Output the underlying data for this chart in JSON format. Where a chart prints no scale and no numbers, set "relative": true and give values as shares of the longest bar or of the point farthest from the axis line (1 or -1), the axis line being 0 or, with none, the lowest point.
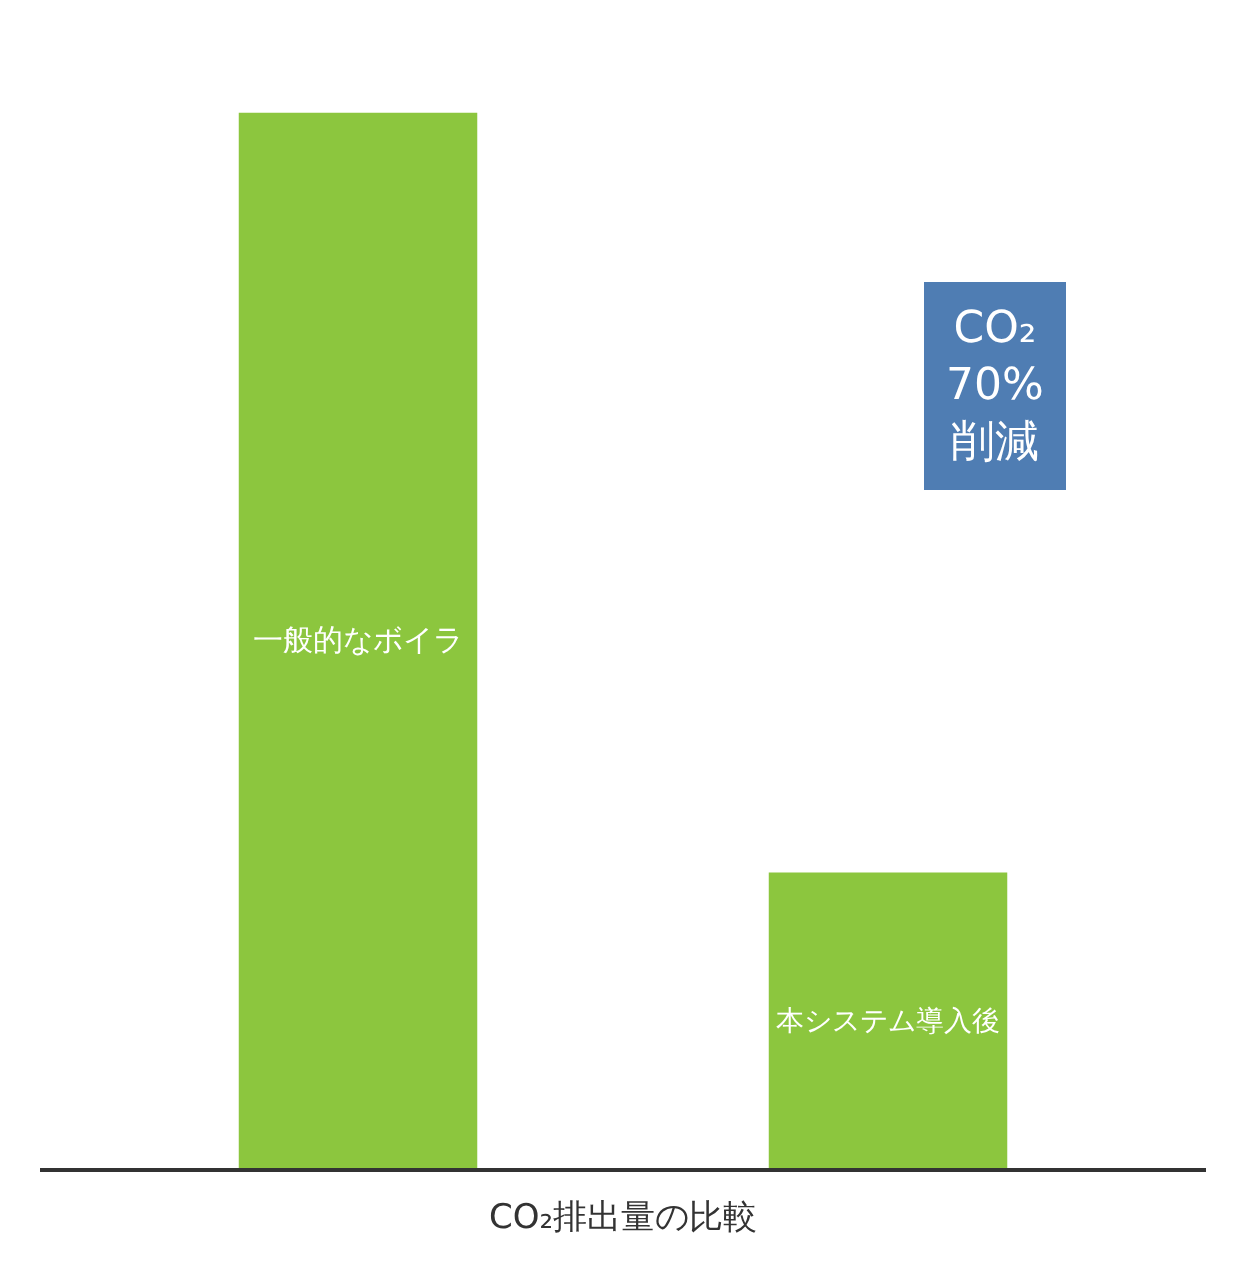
{
  "chart_data": {
    "type": "bar",
    "relative": true,
    "xlabel": "CO₂排出量の比較",
    "categories": [
      "一般的なボイラ",
      "本システム導入後"
    ],
    "values": [
      1,
      0.28
    ],
    "color": "#8cc63e",
    "annotations": [
      "CO₂\n70%\n削減"
    ]
  }
}
